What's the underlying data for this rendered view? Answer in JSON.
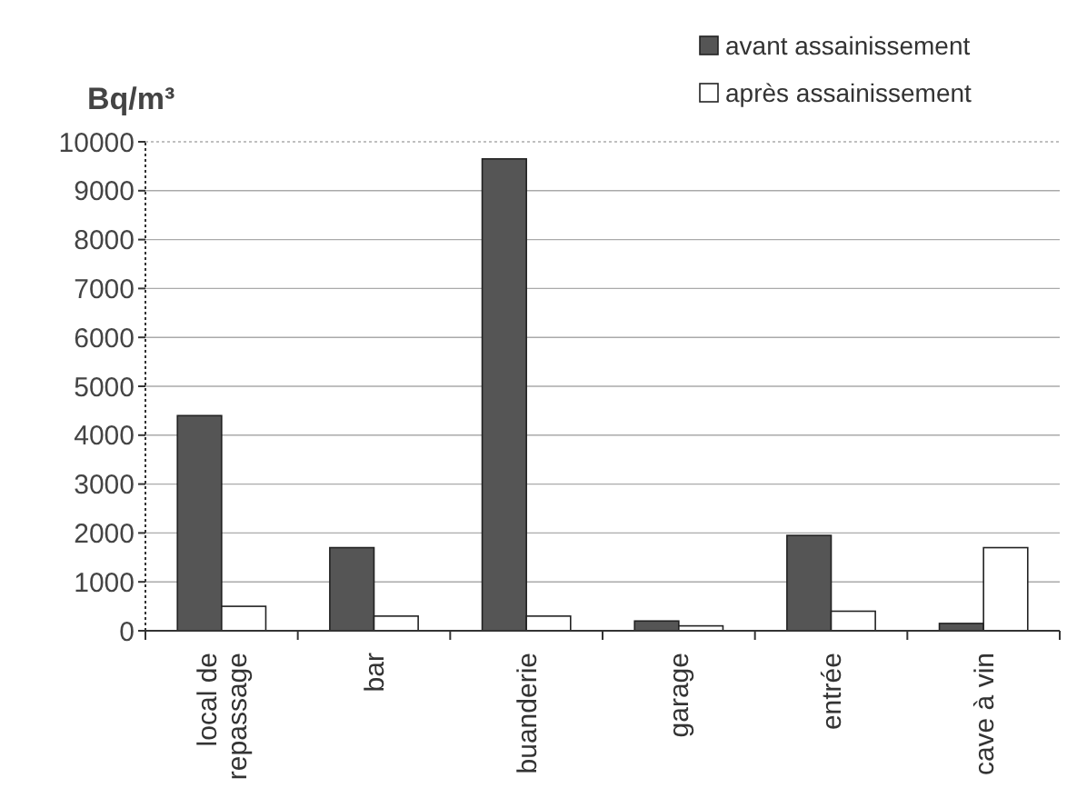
{
  "chart_data": {
    "type": "bar",
    "ylabel": "Bq/m³",
    "categories": [
      "local de repassage",
      "bar",
      "buanderie",
      "garage",
      "entrée",
      "cave à vin"
    ],
    "series": [
      {
        "name": "avant assainissement",
        "color": "#555555",
        "values": [
          4400,
          1700,
          9650,
          200,
          1950,
          150
        ]
      },
      {
        "name": "après assainissement",
        "color": "#ffffff",
        "values": [
          500,
          300,
          300,
          100,
          400,
          1700
        ]
      }
    ],
    "ylim": [
      0,
      10000
    ],
    "yticks": [
      0,
      1000,
      2000,
      3000,
      4000,
      5000,
      6000,
      7000,
      8000,
      9000,
      10000
    ],
    "grid": "y",
    "legend": "top right"
  }
}
